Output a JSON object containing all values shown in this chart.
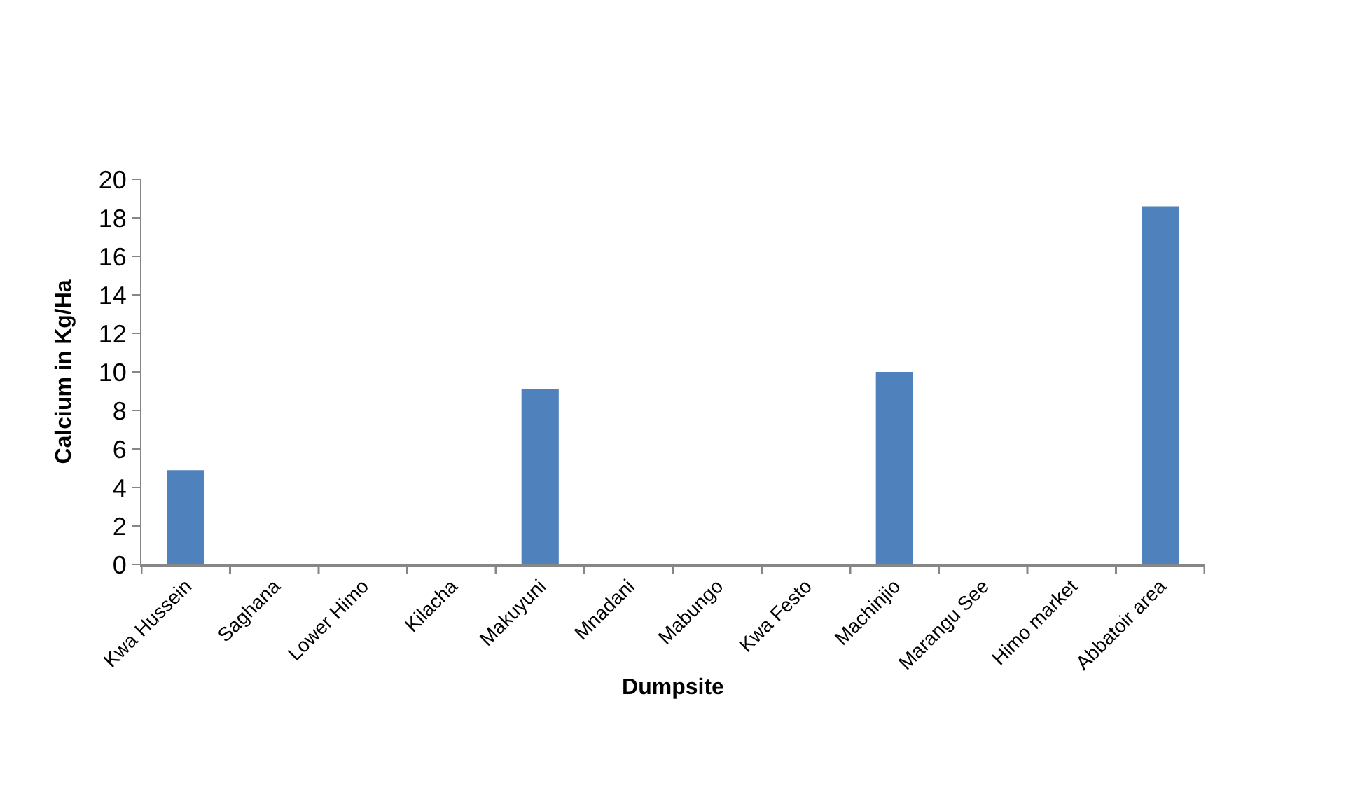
{
  "chart_data": {
    "type": "bar",
    "xlabel": "Dumpsite",
    "ylabel": "Calcium in Kg/Ha",
    "categories": [
      "Kwa Hussein",
      "Saghana",
      "Lower Himo",
      "Kilacha",
      "Makuyuni",
      "Mnadani",
      "Mabungo",
      "Kwa Festo",
      "Machinjio",
      "Marangu See",
      "Himo market",
      "Abbatoir area"
    ],
    "values": [
      4.9,
      0,
      0,
      0,
      9.1,
      0,
      0,
      0,
      10.0,
      0,
      0,
      18.6
    ],
    "color": "#4f81bd",
    "ylim": [
      0,
      20
    ],
    "yticks": [
      0,
      2,
      4,
      6,
      8,
      10,
      12,
      14,
      16,
      18,
      20
    ]
  }
}
